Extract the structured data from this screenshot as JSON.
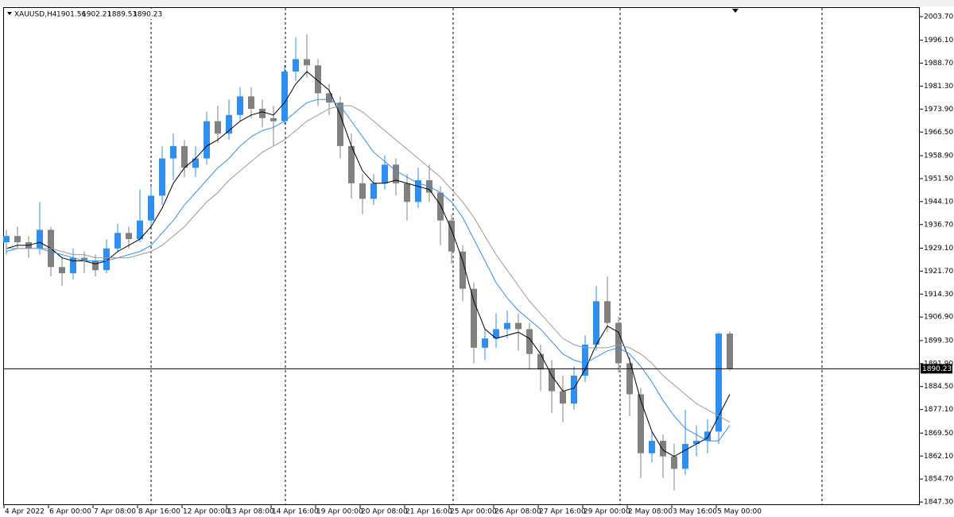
{
  "chart_data": {
    "type": "candlestick",
    "symbol": "XAUUSD,H4",
    "categories": [
      "4 Apr 2022",
      null,
      null,
      null,
      "6 Apr 00:00",
      null,
      null,
      null,
      "7 Apr 08:00",
      null,
      null,
      null,
      "8 Apr 16:00",
      null,
      null,
      null,
      "12 Apr 00:00",
      null,
      null,
      null,
      "13 Apr 08:00",
      null,
      null,
      null,
      "14 Apr 16:00",
      null,
      null,
      null,
      "19 Apr 00:00",
      null,
      null,
      null,
      "20 Apr 08:00",
      null,
      null,
      null,
      "21 Apr 16:00",
      null,
      null,
      null,
      "25 Apr 00:00",
      null,
      null,
      null,
      "26 Apr 08:00",
      null,
      null,
      null,
      "27 Apr 16:00",
      null,
      null,
      null,
      "29 Apr 00:00",
      null,
      null,
      null,
      "2 May 08:00",
      null,
      null,
      null,
      "3 May 16:00",
      null,
      null,
      null,
      "5 May 00:00",
      null
    ],
    "open": [
      1931,
      1933,
      1931,
      1929,
      1935,
      1923,
      1921,
      1926,
      1925,
      1922,
      1929,
      1934,
      1932,
      1938,
      1946,
      1958,
      1962,
      1955,
      1958,
      1970,
      1966,
      1972,
      1978,
      1974,
      1971,
      1970,
      1986,
      1990,
      1988,
      1979,
      1976,
      1962,
      1950,
      1945,
      1950,
      1956,
      1950,
      1944,
      1951,
      1947,
      1938,
      1928,
      1916,
      1897,
      1900,
      1903,
      1905,
      1903,
      1895,
      1890,
      1883,
      1879,
      1888,
      1898,
      1912,
      1905,
      1892,
      1882,
      1863,
      1867,
      1862,
      1858,
      1866,
      1867,
      1870,
      1901.56
    ],
    "high": [
      1935,
      1936,
      1933,
      1944,
      1936,
      1926,
      1929,
      1928,
      1927,
      1932,
      1937,
      1936,
      1948,
      1949,
      1962,
      1966,
      1964,
      1962,
      1973,
      1975,
      1977,
      1981,
      1981,
      1977,
      1975,
      1988,
      1997,
      1998,
      1990,
      1982,
      1978,
      1966,
      1953,
      1953,
      1959,
      1958,
      1953,
      1955,
      1956,
      1949,
      1940,
      1930,
      1918,
      1903,
      1908,
      1909,
      1908,
      1905,
      1898,
      1893,
      1888,
      1891,
      1901,
      1917,
      1920,
      1907,
      1894,
      1884,
      1870,
      1869,
      1866,
      1877,
      1872,
      1874,
      1902,
      1902.21
    ],
    "low": [
      1927,
      1929,
      1926,
      1927,
      1920,
      1917,
      1919,
      1921,
      1920,
      1921,
      1928,
      1929,
      1931,
      1936,
      1943,
      1951,
      1952,
      1952,
      1956,
      1963,
      1964,
      1970,
      1971,
      1968,
      1962,
      1969,
      1983,
      1984,
      1975,
      1972,
      1958,
      1945,
      1940,
      1943,
      1948,
      1946,
      1938,
      1942,
      1944,
      1930,
      1924,
      1912,
      1892,
      1893,
      1897,
      1900,
      1896,
      1890,
      1883,
      1876,
      1873,
      1877,
      1886,
      1896,
      1902,
      1889,
      1875,
      1855,
      1860,
      1855,
      1851,
      1856,
      1862,
      1863,
      1866,
      1889.53
    ],
    "close": [
      1933,
      1931,
      1929,
      1935,
      1923,
      1921,
      1926,
      1925,
      1922,
      1929,
      1934,
      1932,
      1938,
      1946,
      1958,
      1962,
      1955,
      1958,
      1970,
      1966,
      1972,
      1978,
      1974,
      1971,
      1970,
      1986,
      1990,
      1988,
      1979,
      1976,
      1962,
      1950,
      1945,
      1950,
      1956,
      1950,
      1944,
      1951,
      1947,
      1938,
      1928,
      1916,
      1897,
      1900,
      1903,
      1905,
      1903,
      1895,
      1890,
      1883,
      1879,
      1888,
      1898,
      1912,
      1905,
      1892,
      1882,
      1863,
      1867,
      1862,
      1858,
      1866,
      1867,
      1870,
      1901.56,
      1890.23
    ],
    "up_color": "#2f8ff0",
    "down_color": "#808080",
    "lines": [
      {
        "color": "#000000",
        "values": [
          1929,
          1930,
          1930,
          1931,
          1929,
          1926,
          1925,
          1925,
          1924,
          1925,
          1928,
          1930,
          1932,
          1936,
          1942,
          1950,
          1955,
          1958,
          1962,
          1964,
          1967,
          1970,
          1972,
          1973,
          1972,
          1976,
          1982,
          1986,
          1983,
          1980,
          1972,
          1962,
          1954,
          1950,
          1950,
          1951,
          1950,
          1949,
          1948,
          1943,
          1935,
          1925,
          1912,
          1903,
          1900,
          1901,
          1902,
          1900,
          1895,
          1888,
          1883,
          1884,
          1890,
          1898,
          1904,
          1902,
          1893,
          1880,
          1870,
          1864,
          1862,
          1864,
          1866,
          1868,
          1875,
          1882
        ]
      },
      {
        "color": "#2f8ff0",
        "values": [
          1928,
          1929,
          1929,
          1929,
          1928,
          1927,
          1926,
          1925,
          1925,
          1925,
          1926,
          1927,
          1928,
          1930,
          1934,
          1938,
          1943,
          1947,
          1951,
          1955,
          1958,
          1962,
          1965,
          1967,
          1968,
          1970,
          1973,
          1976,
          1977,
          1977,
          1975,
          1970,
          1965,
          1960,
          1957,
          1954,
          1952,
          1950,
          1949,
          1947,
          1944,
          1939,
          1932,
          1925,
          1918,
          1913,
          1909,
          1906,
          1903,
          1899,
          1895,
          1893,
          1892,
          1894,
          1896,
          1897,
          1895,
          1891,
          1886,
          1880,
          1875,
          1871,
          1869,
          1867,
          1867,
          1872
        ]
      },
      {
        "color": "#9a9a9a",
        "values": [
          1929,
          1929,
          1929,
          1929,
          1929,
          1928,
          1927,
          1927,
          1926,
          1926,
          1926,
          1926,
          1927,
          1928,
          1930,
          1933,
          1936,
          1940,
          1944,
          1947,
          1951,
          1954,
          1957,
          1960,
          1962,
          1964,
          1967,
          1970,
          1972,
          1974,
          1975,
          1975,
          1973,
          1970,
          1967,
          1964,
          1961,
          1958,
          1955,
          1952,
          1948,
          1944,
          1939,
          1933,
          1927,
          1922,
          1917,
          1912,
          1908,
          1904,
          1900,
          1898,
          1897,
          1897,
          1897,
          1898,
          1897,
          1895,
          1892,
          1888,
          1885,
          1882,
          1879,
          1877,
          1875,
          1873
        ]
      }
    ],
    "ylim": [
      1846.3,
      2006.5
    ],
    "yticks": [
      {
        "value": 2003.7,
        "label": "2003.70"
      },
      {
        "value": 1996.1,
        "label": "1996.10"
      },
      {
        "value": 1988.7,
        "label": "1988.70"
      },
      {
        "value": 1981.3,
        "label": "1981.30"
      },
      {
        "value": 1973.9,
        "label": "1973.90"
      },
      {
        "value": 1966.5,
        "label": "1966.50"
      },
      {
        "value": 1958.9,
        "label": "1958.90"
      },
      {
        "value": 1951.5,
        "label": "1951.50"
      },
      {
        "value": 1944.1,
        "label": "1944.10"
      },
      {
        "value": 1936.7,
        "label": "1936.70"
      },
      {
        "value": 1929.1,
        "label": "1929.10"
      },
      {
        "value": 1921.7,
        "label": "1921.70"
      },
      {
        "value": 1914.3,
        "label": "1914.30"
      },
      {
        "value": 1906.9,
        "label": "1906.90"
      },
      {
        "value": 1899.3,
        "label": "1899.30"
      },
      {
        "value": 1891.9,
        "label": "1891.90"
      },
      {
        "value": 1884.5,
        "label": "1884.50"
      },
      {
        "value": 1877.1,
        "label": "1877.10"
      },
      {
        "value": 1869.5,
        "label": "1869.50"
      },
      {
        "value": 1862.1,
        "label": "1862.10"
      },
      {
        "value": 1854.7,
        "label": "1854.70"
      },
      {
        "value": 1847.3,
        "label": "1847.30"
      }
    ]
  }
}
